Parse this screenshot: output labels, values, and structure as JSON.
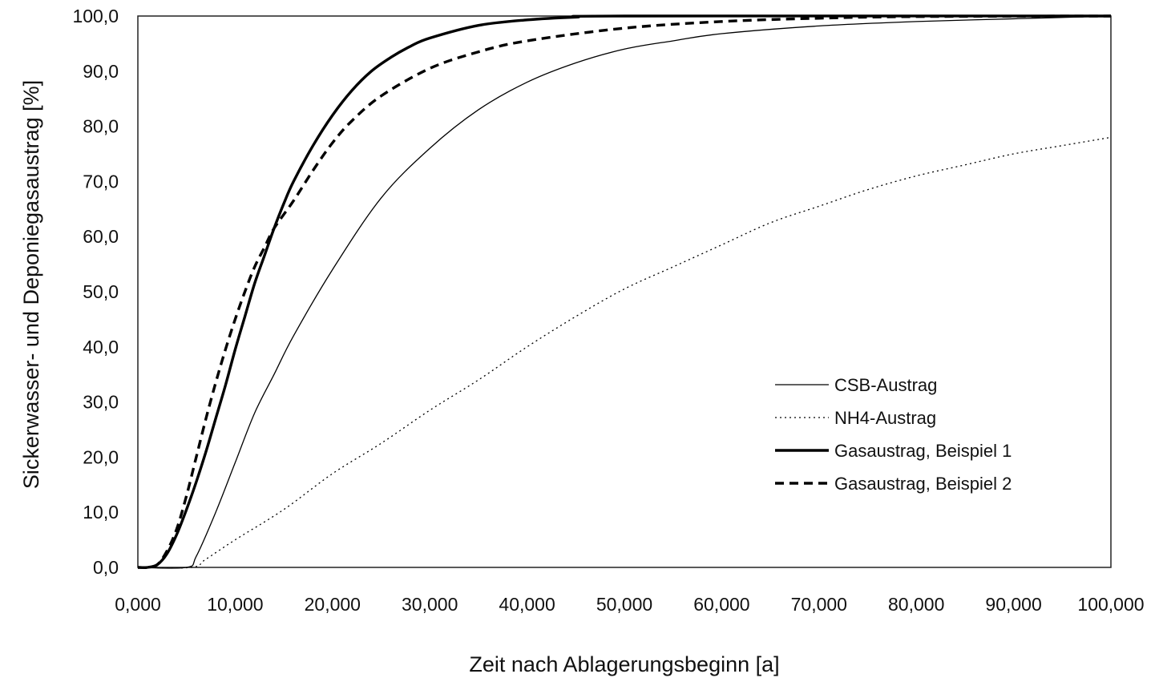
{
  "chart_data": {
    "type": "line",
    "title": "",
    "xlabel": "Zeit nach Ablagerungsbeginn [a]",
    "ylabel": "Sickerwasser- und Deponiegasaustrag [%]",
    "xlim": [
      0,
      100000
    ],
    "ylim": [
      0,
      100
    ],
    "x_ticks": [
      "0,000",
      "10,000",
      "20,000",
      "30,000",
      "40,000",
      "50,000",
      "60,000",
      "70,000",
      "80,000",
      "90,000",
      "100,000"
    ],
    "y_ticks": [
      "0,0",
      "10,0",
      "20,0",
      "30,0",
      "40,0",
      "50,0",
      "60,0",
      "70,0",
      "80,0",
      "90,0",
      "100,0"
    ],
    "grid": false,
    "legend_position": "center-right",
    "series": [
      {
        "name": "CSB-Austrag",
        "style": "thin-solid",
        "color": "#000000",
        "points": [
          [
            0,
            0
          ],
          [
            5000,
            0
          ],
          [
            6000,
            2
          ],
          [
            8000,
            10
          ],
          [
            10000,
            19
          ],
          [
            12000,
            28
          ],
          [
            14000,
            35
          ],
          [
            16000,
            42
          ],
          [
            20000,
            54
          ],
          [
            25000,
            67
          ],
          [
            30000,
            76
          ],
          [
            35000,
            83
          ],
          [
            40000,
            88
          ],
          [
            45000,
            91.5
          ],
          [
            50000,
            94
          ],
          [
            55000,
            95.5
          ],
          [
            60000,
            96.8
          ],
          [
            70000,
            98.2
          ],
          [
            80000,
            99
          ],
          [
            90000,
            99.5
          ],
          [
            100000,
            100
          ]
        ]
      },
      {
        "name": "NH4-Austrag",
        "style": "thin-dotted",
        "color": "#000000",
        "points": [
          [
            0,
            0
          ],
          [
            5500,
            0
          ],
          [
            7000,
            1.5
          ],
          [
            10000,
            5
          ],
          [
            15000,
            10.5
          ],
          [
            20000,
            17
          ],
          [
            25000,
            22.5
          ],
          [
            30000,
            28.5
          ],
          [
            35000,
            34
          ],
          [
            40000,
            40
          ],
          [
            45000,
            45.5
          ],
          [
            50000,
            50.5
          ],
          [
            55000,
            54.5
          ],
          [
            60000,
            58.5
          ],
          [
            65000,
            62.5
          ],
          [
            70000,
            65.5
          ],
          [
            75000,
            68.5
          ],
          [
            80000,
            71
          ],
          [
            85000,
            73
          ],
          [
            90000,
            75
          ],
          [
            95000,
            76.5
          ],
          [
            100000,
            78
          ]
        ]
      },
      {
        "name": "Gasaustrag, Beispiel 1",
        "style": "thick-solid",
        "color": "#000000",
        "points": [
          [
            0,
            0
          ],
          [
            1000,
            0
          ],
          [
            2000,
            0.5
          ],
          [
            3000,
            2.5
          ],
          [
            4000,
            6
          ],
          [
            5000,
            10.5
          ],
          [
            6000,
            15.5
          ],
          [
            7000,
            21
          ],
          [
            8000,
            27
          ],
          [
            9000,
            33
          ],
          [
            10000,
            39.5
          ],
          [
            11000,
            45.5
          ],
          [
            12000,
            51.5
          ],
          [
            13000,
            56.5
          ],
          [
            14000,
            61.5
          ],
          [
            15000,
            66
          ],
          [
            16000,
            70
          ],
          [
            18000,
            76.5
          ],
          [
            20000,
            82
          ],
          [
            22000,
            86.5
          ],
          [
            24000,
            90
          ],
          [
            26000,
            92.5
          ],
          [
            28000,
            94.5
          ],
          [
            30000,
            96
          ],
          [
            35000,
            98.3
          ],
          [
            40000,
            99.3
          ],
          [
            45000,
            99.8
          ],
          [
            50000,
            100
          ],
          [
            100000,
            100
          ]
        ]
      },
      {
        "name": "Gasaustrag, Beispiel 2",
        "style": "thick-dashed",
        "color": "#000000",
        "points": [
          [
            0,
            0
          ],
          [
            1000,
            0
          ],
          [
            2000,
            0.5
          ],
          [
            3000,
            3
          ],
          [
            4000,
            7
          ],
          [
            5000,
            13
          ],
          [
            6000,
            20
          ],
          [
            7000,
            27
          ],
          [
            8000,
            33.5
          ],
          [
            9000,
            39.5
          ],
          [
            10000,
            45
          ],
          [
            11000,
            50
          ],
          [
            12000,
            54.5
          ],
          [
            13000,
            58
          ],
          [
            14000,
            61.5
          ],
          [
            16000,
            66.5
          ],
          [
            18000,
            72
          ],
          [
            20000,
            77
          ],
          [
            22000,
            81
          ],
          [
            25000,
            85.5
          ],
          [
            30000,
            90.5
          ],
          [
            35000,
            93.5
          ],
          [
            40000,
            95.5
          ],
          [
            50000,
            97.8
          ],
          [
            60000,
            99
          ],
          [
            70000,
            99.6
          ],
          [
            80000,
            99.9
          ],
          [
            100000,
            100
          ]
        ]
      }
    ]
  }
}
